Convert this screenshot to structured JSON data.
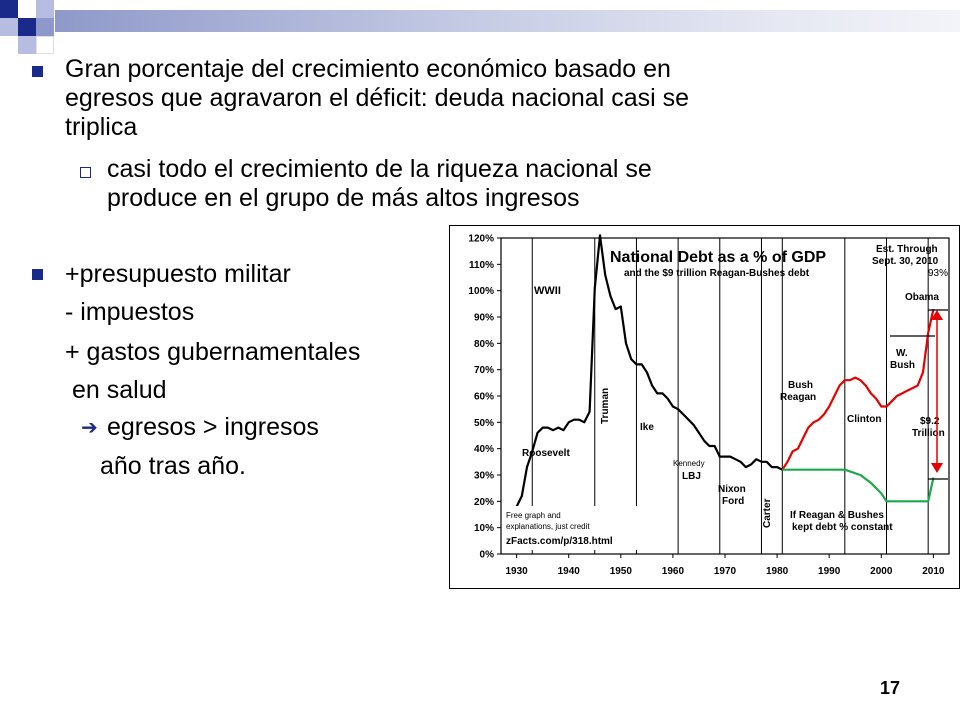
{
  "slide": {
    "bullet1": [
      "Gran porcentaje del crecimiento económico basado en",
      "egresos que agravaron el déficit: deuda nacional casi se",
      "triplica"
    ],
    "sub1": [
      "casi todo el crecimiento de la riqueza nacional se",
      "produce en el grupo de más altos  ingresos"
    ],
    "bullet2": "+presupuesto militar",
    "line_tax": "- impuestos",
    "line_spend": "+ gastos gubernamentales",
    "line_health": "en salud",
    "arrow_line": "egresos > ingresos",
    "line_year": "año tras año.",
    "page_number": "17"
  },
  "chart_data": {
    "type": "line",
    "title": "National Debt as a % of GDP",
    "subtitle": "and the $9 trillion Reagan-Bushes debt",
    "note_est": [
      "Est. Through",
      "Sept. 30, 2010",
      "93%"
    ],
    "xlabel": "",
    "ylabel": "",
    "xlim": [
      1927,
      2013
    ],
    "ylim": [
      0,
      120
    ],
    "x_ticks": [
      1930,
      1940,
      1950,
      1960,
      1970,
      1980,
      1990,
      2000,
      2010
    ],
    "y_ticks": [
      "0%",
      "10%",
      "20%",
      "30%",
      "40%",
      "50%",
      "60%",
      "70%",
      "80%",
      "90%",
      "100%",
      "110%",
      "120%"
    ],
    "grid": "vertical lines at presidential term boundaries",
    "term_boundaries": [
      1933,
      1945,
      1953,
      1961,
      1969,
      1977,
      1981,
      1993,
      2001,
      2009
    ],
    "series": [
      {
        "color": "#000000",
        "points": [
          [
            1929,
            16
          ],
          [
            1930,
            18
          ],
          [
            1931,
            22
          ],
          [
            1932,
            33
          ],
          [
            1933,
            39
          ],
          [
            1934,
            46
          ],
          [
            1935,
            48
          ],
          [
            1936,
            48
          ],
          [
            1937,
            47
          ],
          [
            1938,
            48
          ],
          [
            1939,
            47
          ],
          [
            1940,
            50
          ],
          [
            1941,
            51
          ],
          [
            1942,
            51
          ],
          [
            1943,
            50
          ],
          [
            1944,
            54
          ],
          [
            1945,
            101
          ],
          [
            1946,
            121
          ],
          [
            1947,
            106
          ],
          [
            1948,
            98
          ],
          [
            1949,
            93
          ],
          [
            1950,
            94
          ],
          [
            1951,
            80
          ],
          [
            1952,
            74
          ],
          [
            1953,
            72
          ],
          [
            1954,
            72
          ],
          [
            1955,
            69
          ],
          [
            1956,
            64
          ],
          [
            1957,
            61
          ],
          [
            1958,
            61
          ],
          [
            1959,
            59
          ],
          [
            1960,
            56
          ],
          [
            1961,
            55
          ],
          [
            1962,
            53
          ],
          [
            1963,
            51
          ],
          [
            1964,
            49
          ],
          [
            1965,
            46
          ],
          [
            1966,
            43
          ],
          [
            1967,
            41
          ],
          [
            1968,
            41
          ],
          [
            1969,
            37
          ],
          [
            1970,
            37
          ],
          [
            1971,
            37
          ],
          [
            1972,
            36
          ],
          [
            1973,
            35
          ],
          [
            1974,
            33
          ],
          [
            1975,
            34
          ],
          [
            1976,
            36
          ],
          [
            1977,
            35
          ],
          [
            1978,
            35
          ],
          [
            1979,
            33
          ],
          [
            1980,
            33
          ],
          [
            1981,
            32
          ]
        ]
      },
      {
        "color": "#e60000",
        "points": [
          [
            1981,
            32
          ],
          [
            1982,
            35
          ],
          [
            1983,
            39
          ],
          [
            1984,
            40
          ],
          [
            1985,
            44
          ],
          [
            1986,
            48
          ],
          [
            1987,
            50
          ],
          [
            1988,
            51
          ],
          [
            1989,
            53
          ],
          [
            1990,
            56
          ],
          [
            1991,
            60
          ],
          [
            1992,
            64
          ],
          [
            1993,
            66
          ],
          [
            1994,
            66
          ],
          [
            1995,
            67
          ],
          [
            1996,
            66
          ],
          [
            1997,
            64
          ],
          [
            1998,
            61
          ],
          [
            1999,
            59
          ],
          [
            2000,
            56
          ],
          [
            2001,
            56
          ],
          [
            2002,
            58
          ],
          [
            2003,
            60
          ],
          [
            2004,
            61
          ],
          [
            2005,
            62
          ],
          [
            2006,
            63
          ],
          [
            2007,
            64
          ],
          [
            2008,
            69
          ],
          [
            2009,
            84
          ],
          [
            2010,
            93
          ]
        ]
      },
      {
        "color": "#1aa84a",
        "points": [
          [
            1981,
            32
          ],
          [
            1993,
            32
          ],
          [
            1996,
            30
          ],
          [
            1998,
            27
          ],
          [
            2000,
            23
          ],
          [
            2001,
            20
          ],
          [
            2009,
            20
          ],
          [
            2010,
            29
          ]
        ]
      }
    ],
    "annotations": {
      "wwii": "WWII",
      "roosevelt": "Roosevelt",
      "truman": "Truman",
      "ike": "Ike",
      "kennedy": "Kennedy",
      "lbj": "LBJ",
      "nixon_ford": [
        "Nixon",
        "Ford"
      ],
      "carter": "Carter",
      "bush_reagan": [
        "Bush",
        "Reagan"
      ],
      "clinton": "Clinton",
      "w_bush": [
        "W.",
        "Bush"
      ],
      "obama": "Obama",
      "trillion": [
        "$9.2",
        "Trillion"
      ],
      "constant": [
        "If Reagan & Bushes",
        "kept debt % constant"
      ],
      "credit": [
        "Free graph and",
        "explanations, just  credit",
        "zFacts.com/p/318.html"
      ]
    }
  }
}
